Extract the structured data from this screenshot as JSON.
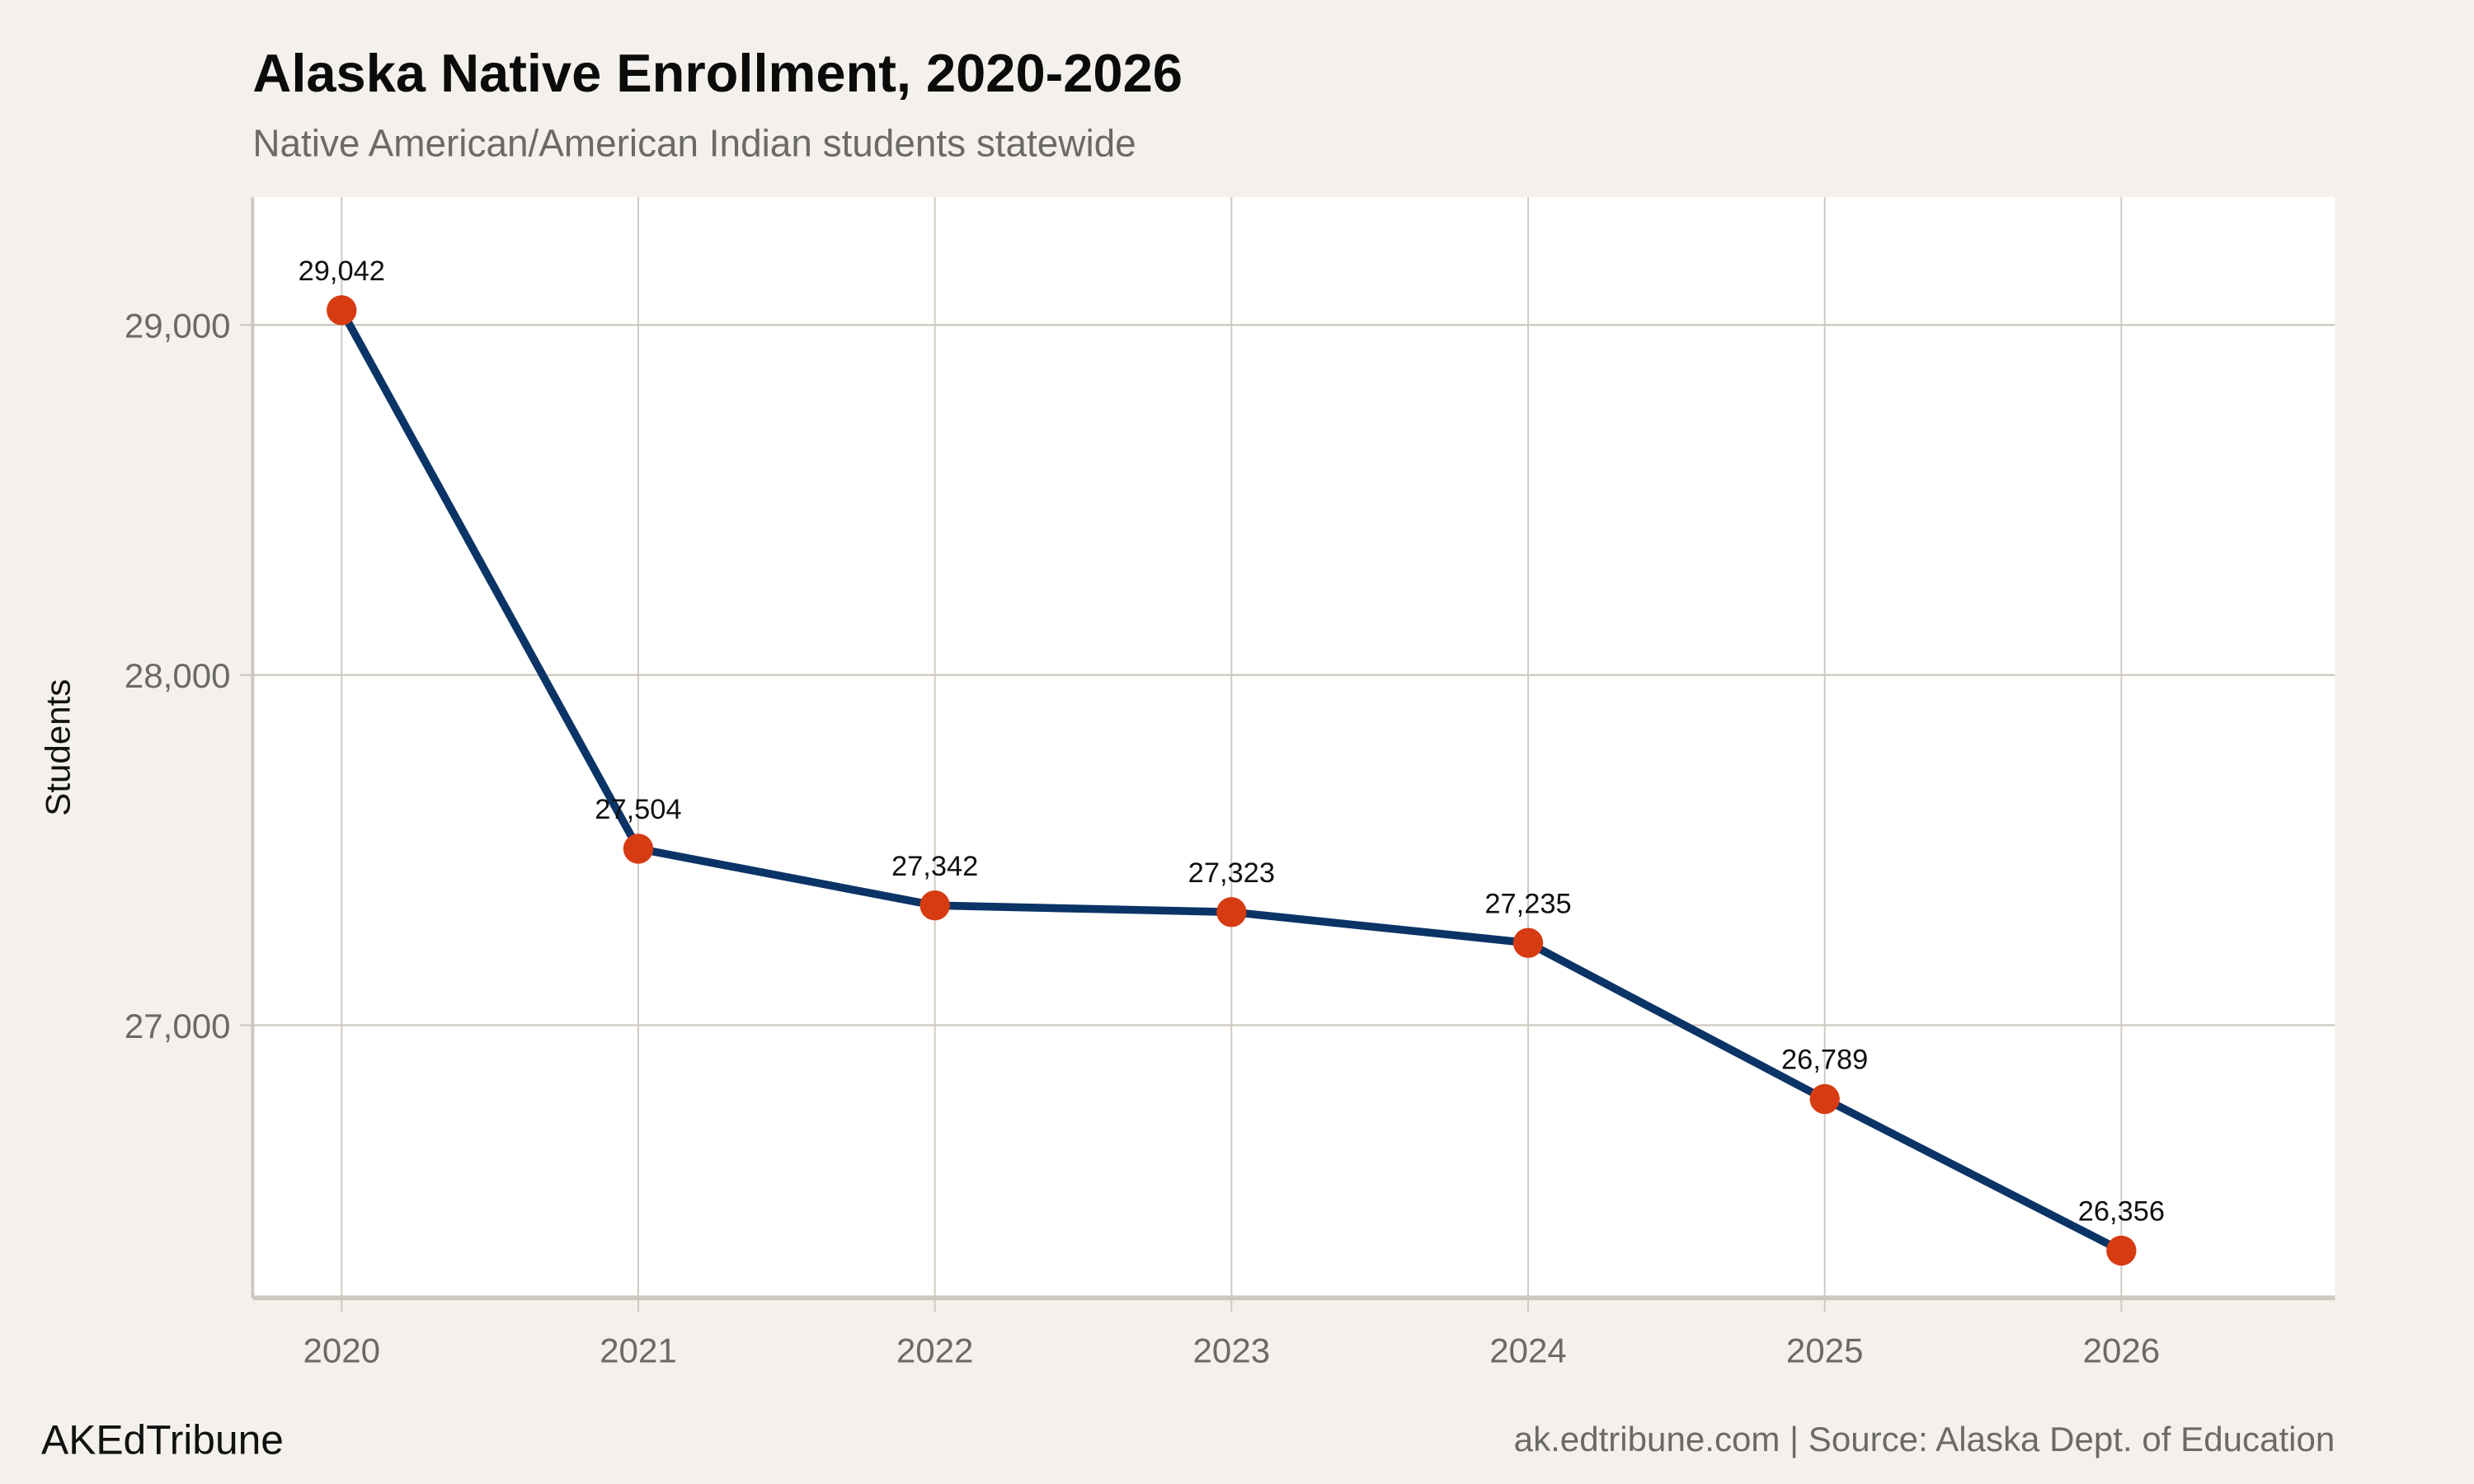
{
  "chart_data": {
    "type": "line",
    "title": "Alaska Native Enrollment, 2020-2026",
    "subtitle": "Native American/American Indian students statewide",
    "xlabel": "",
    "ylabel": "Students",
    "x": [
      2020,
      2021,
      2022,
      2023,
      2024,
      2025,
      2026
    ],
    "x_tick_labels": [
      "2020",
      "2021",
      "2022",
      "2023",
      "2024",
      "2025",
      "2026"
    ],
    "values": [
      29042,
      27504,
      27342,
      27323,
      27235,
      26789,
      26356
    ],
    "data_labels": [
      "29,042",
      "27,504",
      "27,342",
      "27,323",
      "27,235",
      "26,789",
      "26,356"
    ],
    "y_ticks": [
      27000,
      28000,
      29000
    ],
    "y_tick_labels": [
      "27,000",
      "28,000",
      "29,000"
    ],
    "xlim": [
      2019.7,
      2026.72
    ],
    "ylim": [
      26221,
      29365
    ],
    "grid": true,
    "legend": "none",
    "colors": {
      "line": "#0b3466",
      "point": "#d63b12",
      "grid": "#cdc8bf",
      "background": "#f4f1ec",
      "panel": "#ffffff"
    }
  },
  "footer": {
    "brand": "AKEdTribune",
    "caption": "ak.edtribune.com | Source: Alaska Dept. of Education"
  }
}
